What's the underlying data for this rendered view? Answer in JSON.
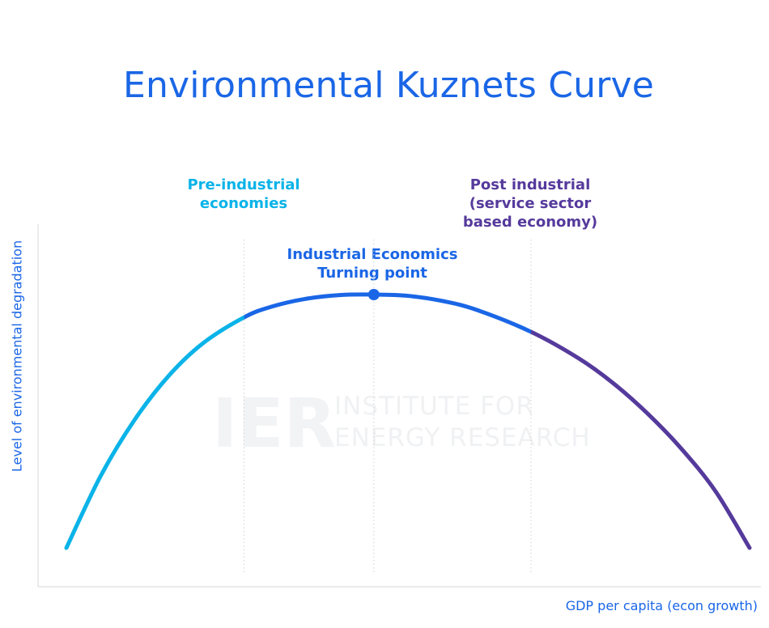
{
  "colors": {
    "title": "#1a66e6",
    "pre_industrial": "#0ab3e8",
    "industrial": "#1a66e6",
    "post_industrial": "#553a9c",
    "axis": "#d7d7d7",
    "divider": "#d2d2d2"
  },
  "watermark": {
    "logo": "IER",
    "line1": "INSTITUTE FOR",
    "line2": "ENERGY RESEARCH"
  },
  "chart_data": {
    "type": "line",
    "title": "Environmental Kuznets Curve",
    "xlabel": "GDP per capita (econ growth)",
    "ylabel": "Level of environmental degradation",
    "stages": [
      {
        "name": "pre_industrial",
        "lines": [
          "Pre-industrial",
          "economies"
        ],
        "x_range": [
          0.0,
          0.26
        ]
      },
      {
        "name": "industrial",
        "lines": [
          "Industrial Economics",
          "Turning point"
        ],
        "x_range": [
          0.26,
          0.68
        ]
      },
      {
        "name": "post_industrial",
        "lines": [
          "Post industrial",
          "(service sector",
          "based economy)"
        ],
        "x_range": [
          0.68,
          1.0
        ]
      }
    ],
    "dividers_x": [
      0.26,
      0.45,
      0.68
    ],
    "turning_point": {
      "x": 0.45,
      "y": 1.0
    },
    "curve": {
      "x": [
        0.0,
        0.05,
        0.1,
        0.15,
        0.2,
        0.26,
        0.3,
        0.35,
        0.4,
        0.45,
        0.5,
        0.55,
        0.6,
        0.68,
        0.75,
        0.8,
        0.85,
        0.9,
        0.95,
        1.0
      ],
      "y": [
        0.0,
        0.283,
        0.506,
        0.68,
        0.808,
        0.91,
        0.952,
        0.983,
        0.998,
        1.0,
        0.995,
        0.975,
        0.94,
        0.853,
        0.748,
        0.651,
        0.532,
        0.392,
        0.224,
        0.0
      ]
    },
    "xlim": [
      0,
      1
    ],
    "ylim": [
      0,
      1
    ],
    "grid": false,
    "legend": "none"
  }
}
